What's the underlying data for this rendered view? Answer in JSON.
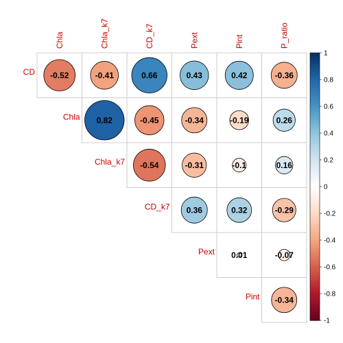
{
  "chart_data": {
    "type": "heatmap",
    "variables": [
      "CD",
      "Chla",
      "Chla_k7",
      "CD_k7",
      "Pext",
      "Pint",
      "P_ratio"
    ],
    "row_labels": [
      "CD",
      "Chla",
      "Chla_k7",
      "CD_k7",
      "Pext",
      "Pint"
    ],
    "col_labels": [
      "Chla",
      "Chla_k7",
      "CD_k7",
      "Pext",
      "Pint",
      "P_ratio"
    ],
    "cells": [
      {
        "row": "CD",
        "col": "Chla",
        "value": -0.52,
        "label": "-0.52"
      },
      {
        "row": "CD",
        "col": "Chla_k7",
        "value": -0.41,
        "label": "-0.41"
      },
      {
        "row": "CD",
        "col": "CD_k7",
        "value": 0.66,
        "label": "0.66"
      },
      {
        "row": "CD",
        "col": "Pext",
        "value": 0.43,
        "label": "0.43"
      },
      {
        "row": "CD",
        "col": "Pint",
        "value": 0.42,
        "label": "0.42"
      },
      {
        "row": "CD",
        "col": "P_ratio",
        "value": -0.36,
        "label": "-0.36"
      },
      {
        "row": "Chla",
        "col": "Chla_k7",
        "value": 0.82,
        "label": "0.82"
      },
      {
        "row": "Chla",
        "col": "CD_k7",
        "value": -0.45,
        "label": "-0.45"
      },
      {
        "row": "Chla",
        "col": "Pext",
        "value": -0.34,
        "label": "-0.34"
      },
      {
        "row": "Chla",
        "col": "Pint",
        "value": -0.19,
        "label": "-0.19"
      },
      {
        "row": "Chla",
        "col": "P_ratio",
        "value": 0.26,
        "label": "0.26"
      },
      {
        "row": "Chla_k7",
        "col": "CD_k7",
        "value": -0.54,
        "label": "-0.54"
      },
      {
        "row": "Chla_k7",
        "col": "Pext",
        "value": -0.31,
        "label": "-0.31"
      },
      {
        "row": "Chla_k7",
        "col": "Pint",
        "value": -0.1,
        "label": "-0.1"
      },
      {
        "row": "Chla_k7",
        "col": "P_ratio",
        "value": 0.16,
        "label": "0.16"
      },
      {
        "row": "CD_k7",
        "col": "Pext",
        "value": 0.36,
        "label": "0.36"
      },
      {
        "row": "CD_k7",
        "col": "Pint",
        "value": 0.32,
        "label": "0.32"
      },
      {
        "row": "CD_k7",
        "col": "P_ratio",
        "value": -0.29,
        "label": "-0.29"
      },
      {
        "row": "Pext",
        "col": "Pint",
        "value": 0.01,
        "label": "0.01"
      },
      {
        "row": "Pext",
        "col": "P_ratio",
        "value": -0.07,
        "label": "-0.07"
      },
      {
        "row": "Pint",
        "col": "P_ratio",
        "value": -0.34,
        "label": "-0.34"
      }
    ],
    "colorbar": {
      "range": [
        -1,
        1
      ],
      "ticks": [
        "1",
        "0.8",
        "0.6",
        "0.4",
        "0.2",
        "0",
        "-0.2",
        "-0.4",
        "-0.6",
        "-0.8",
        "-1"
      ],
      "palette": [
        "#67001F",
        "#B2182B",
        "#D6604D",
        "#F4A582",
        "#FDDBC7",
        "#FFFFFF",
        "#D1E5F0",
        "#92C5DE",
        "#4393C3",
        "#2166AC",
        "#053061"
      ]
    },
    "label_color": "#CC0000",
    "grid": true
  }
}
